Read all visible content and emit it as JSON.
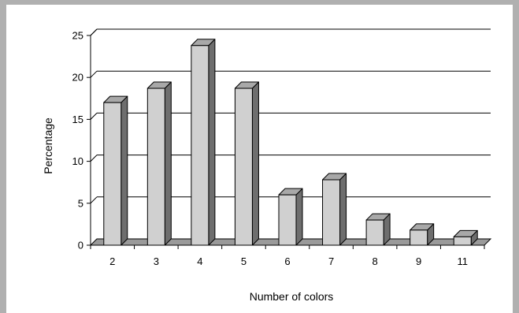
{
  "chart_data": {
    "type": "bar",
    "style": "3d-column",
    "categories": [
      "2",
      "3",
      "4",
      "5",
      "6",
      "7",
      "8",
      "9",
      "11"
    ],
    "values": [
      17,
      18.7,
      23.8,
      18.7,
      6,
      7.8,
      3,
      1.8,
      1
    ],
    "xlabel": "Number of colors",
    "ylabel": "Percentage",
    "ylim": [
      0,
      25
    ],
    "yticks": [
      "0",
      "5",
      "10",
      "15",
      "20",
      "25"
    ],
    "grid": true,
    "legend": "none",
    "colors": {
      "bar_front": "#d0d0d0",
      "bar_top": "#a8a8a8",
      "bar_side": "#6e6e6e",
      "floor": "#9a9a9a",
      "gridline": "#000000",
      "frame": "#b0b0b0"
    }
  }
}
